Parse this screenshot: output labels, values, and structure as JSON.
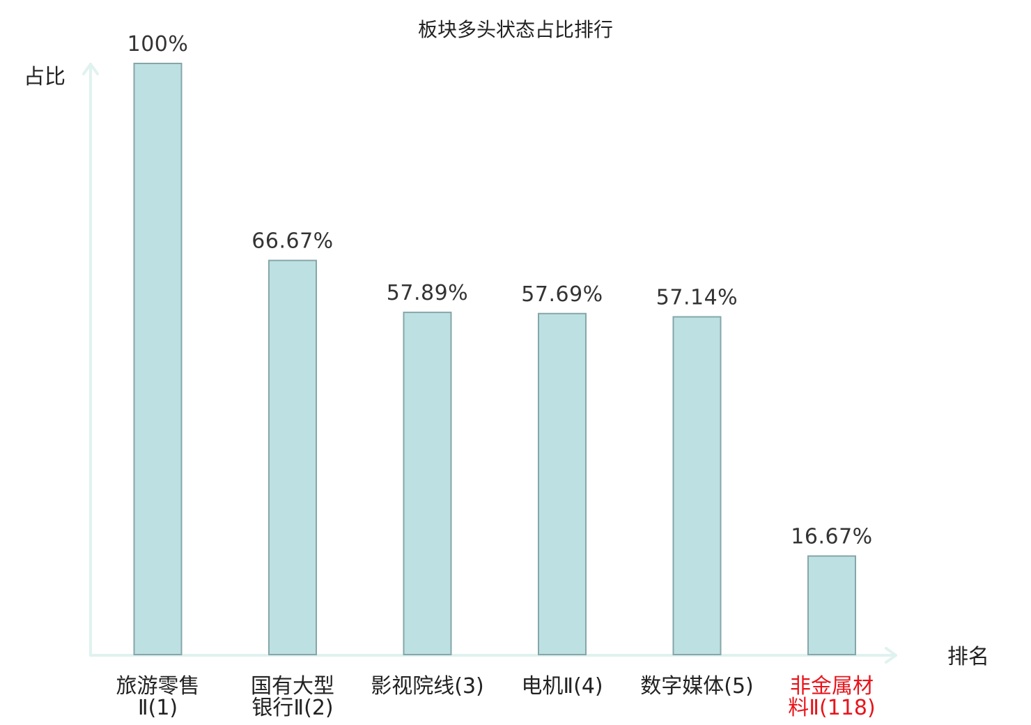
{
  "chart_data": {
    "type": "bar",
    "title": "板块多头状态占比排行",
    "ylabel": "占比",
    "xlabel": "排名",
    "ylim": [
      0,
      100
    ],
    "grid": false,
    "categories": [
      {
        "lines": [
          "旅游零售",
          "Ⅱ(1)"
        ],
        "highlight": false
      },
      {
        "lines": [
          "国有大型",
          "银行Ⅱ(2)"
        ],
        "highlight": false
      },
      {
        "lines": [
          "影视院线(3)"
        ],
        "highlight": false
      },
      {
        "lines": [
          "电机Ⅱ(4)"
        ],
        "highlight": false
      },
      {
        "lines": [
          "数字媒体(5)"
        ],
        "highlight": false
      },
      {
        "lines": [
          "非金属材",
          "料Ⅱ(118)"
        ],
        "highlight": true
      }
    ],
    "values": [
      100,
      66.67,
      57.89,
      57.69,
      57.14,
      16.67
    ],
    "value_labels": [
      "100%",
      "66.67%",
      "57.89%",
      "57.69%",
      "57.14%",
      "16.67%"
    ],
    "colors": {
      "bar_fill": "#bde0e2",
      "bar_stroke": "#86a6a9",
      "axis": "#e0f2ef",
      "highlight_text": "#e8141b",
      "text": "#222222"
    }
  }
}
